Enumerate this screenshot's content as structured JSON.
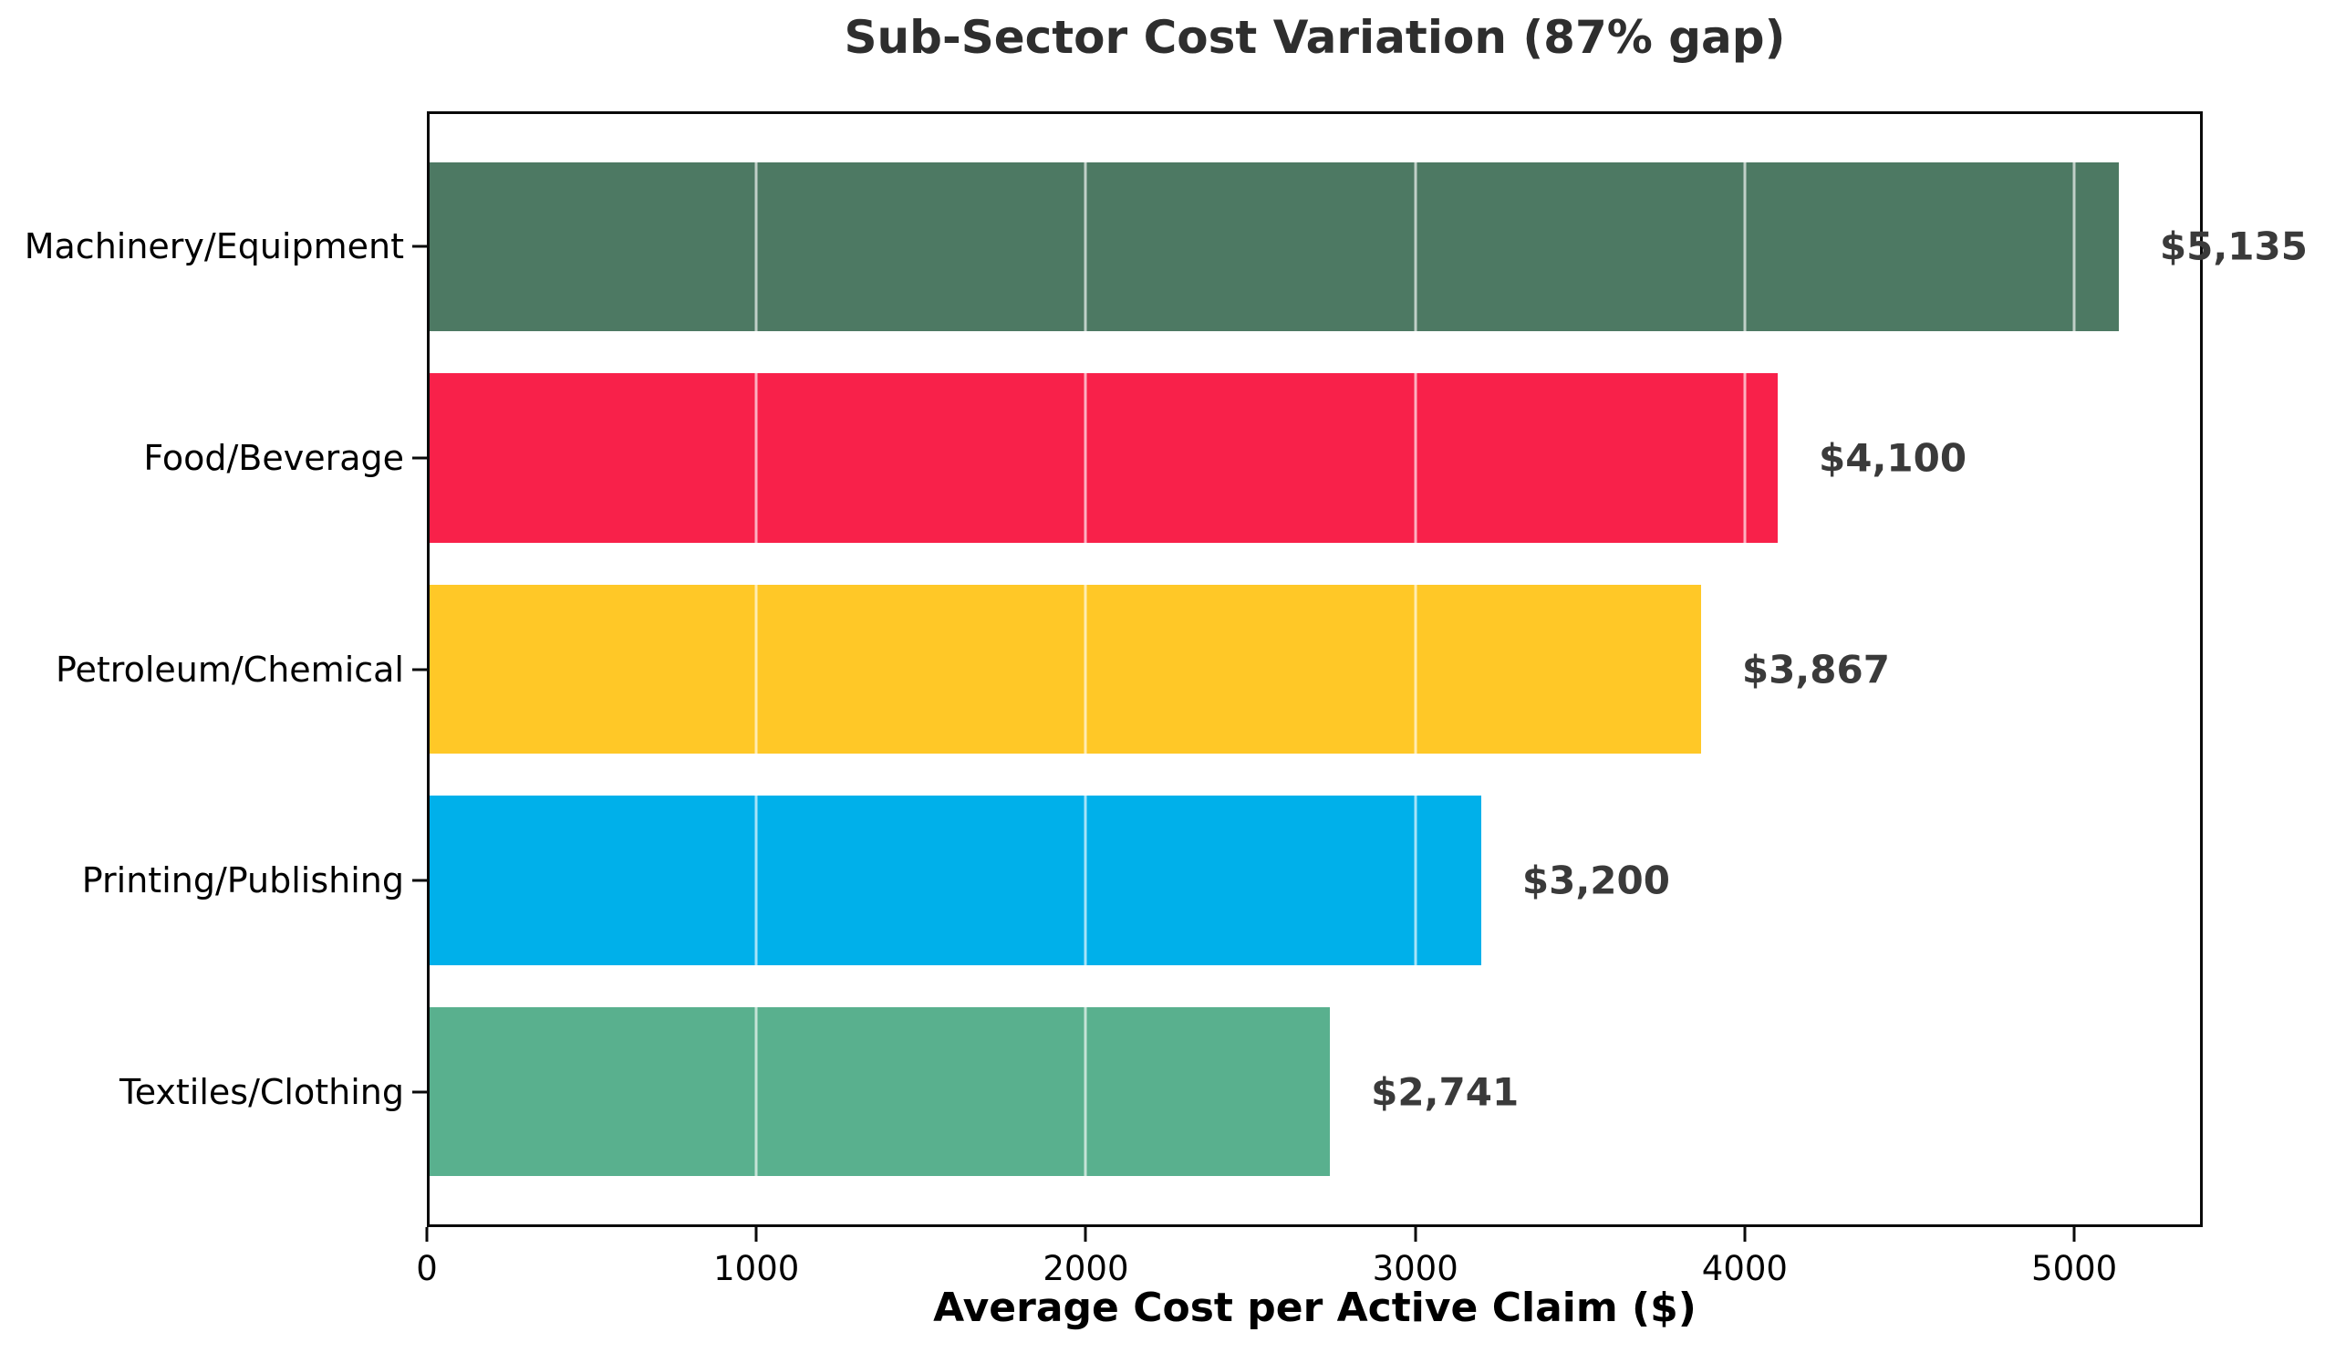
{
  "chart_data": {
    "type": "bar",
    "orientation": "horizontal",
    "title": "Sub-Sector Cost Variation (87% gap)",
    "xlabel": "Average Cost per Active Claim ($)",
    "ylabel": "",
    "categories": [
      "Machinery/Equipment",
      "Food/Beverage",
      "Petroleum/Chemical",
      "Printing/Publishing",
      "Textiles/Clothing"
    ],
    "values": [
      5135,
      4100,
      3867,
      3200,
      2741
    ],
    "value_labels": [
      "$5,135",
      "$4,100",
      "$3,867",
      "$3,200",
      "$2,741"
    ],
    "bar_colors": [
      "#4D7963",
      "#F8214A",
      "#FFC827",
      "#00B0EA",
      "#59B08E"
    ],
    "xlim": [
      0,
      5390
    ],
    "xticks": [
      0,
      1000,
      2000,
      3000,
      4000,
      5000
    ],
    "xtick_labels": [
      "0",
      "1000",
      "2000",
      "3000",
      "4000",
      "5000"
    ],
    "grid": "vertical gridlines at xticks, white, drawn over bars",
    "legend_position": "none",
    "bar_height_fraction": 0.8
  },
  "colors": {
    "background": "#ffffff",
    "title_text": "#2e2e2e",
    "value_label_text": "#3a3a3a",
    "axis_text": "#000000",
    "spine": "#0a0a0a",
    "gridline": "rgba(255,255,255,0.65)"
  }
}
